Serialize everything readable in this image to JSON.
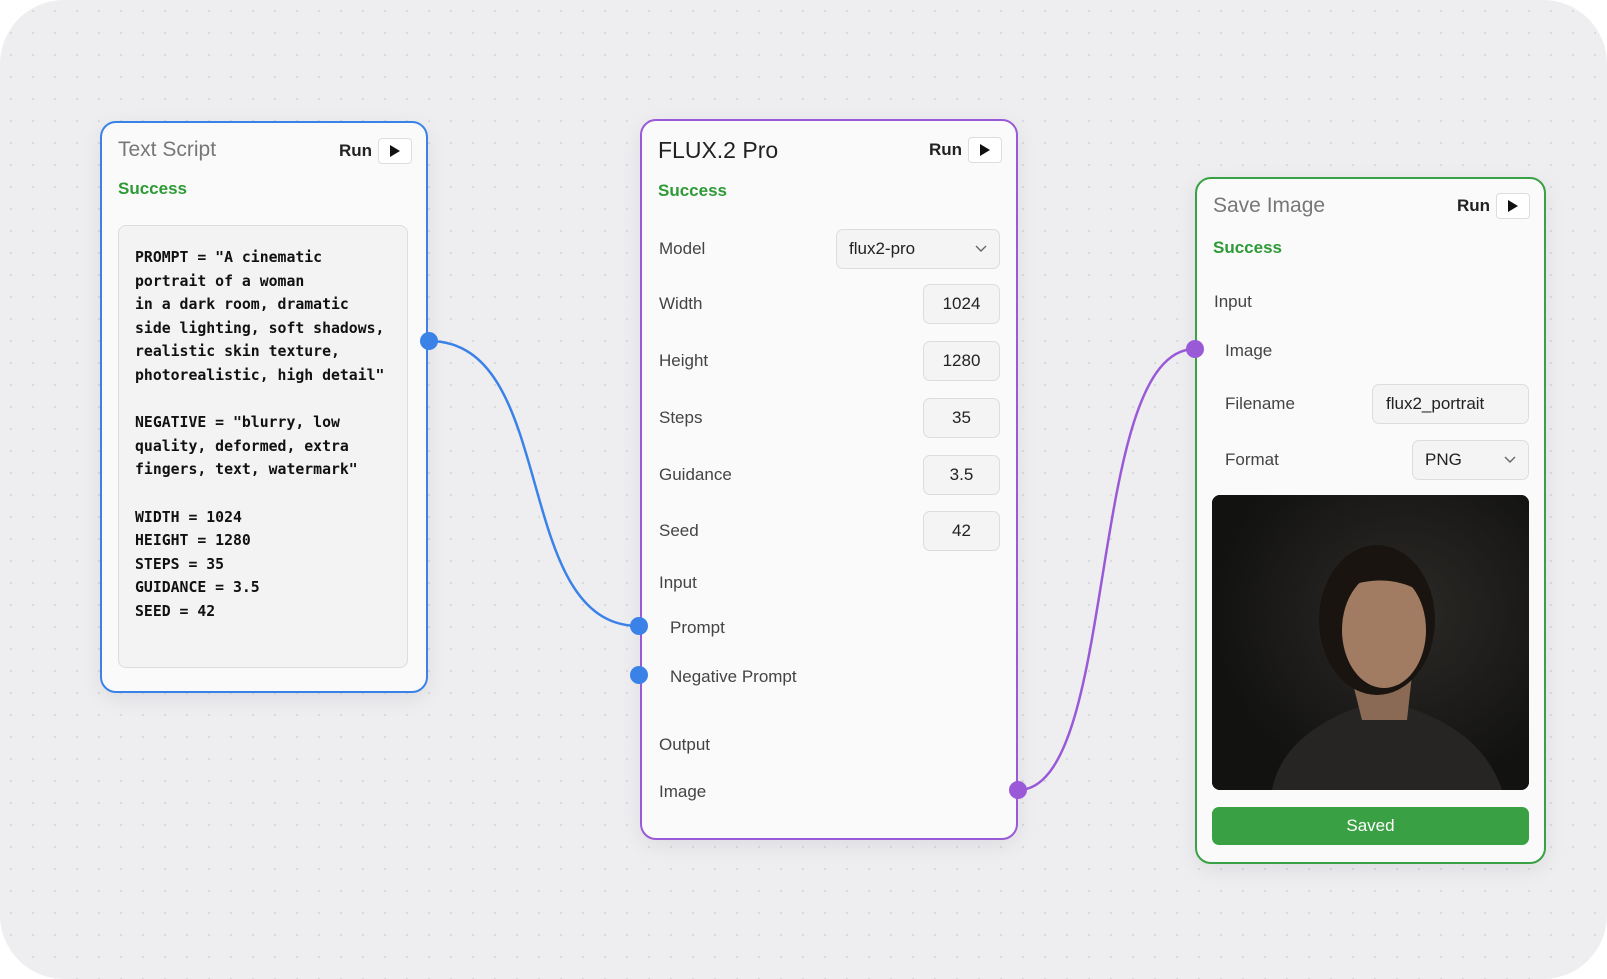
{
  "nodes": [
    {
      "title": "Text Script",
      "run": "Run",
      "status": "Success",
      "script": "PROMPT = \"A cinematic\nportrait of a woman\nin a dark room, dramatic\nside lighting, soft shadows,\nrealistic skin texture,\nphotorealistic, high detail\"\n\nNEGATIVE = \"blurry, low\nquality, deformed, extra\nfingers, text, watermark\"\n\nWIDTH = 1024\nHEIGHT = 1280\nSTEPS = 35\nGUIDANCE = 3.5\nSEED = 42"
    },
    {
      "title": "FLUX.2 Pro",
      "run": "Run",
      "status": "Success",
      "fields": [
        {
          "label": "Model",
          "value": "flux2-pro"
        },
        {
          "label": "Width",
          "value": 1024
        },
        {
          "label": "Height",
          "value": 1280
        },
        {
          "label": "Steps",
          "value": 35
        },
        {
          "label": "Guidance",
          "value": 3.5
        },
        {
          "label": "Seed",
          "value": 42
        }
      ],
      "input_section": "Input",
      "inputs": [
        "Prompt",
        "Negative Prompt"
      ],
      "output_section": "Output",
      "outputs": [
        "Image"
      ]
    },
    {
      "title": "Save Image",
      "run": "Run",
      "status": "Success",
      "input_section": "Input",
      "inputs": [
        "Image"
      ],
      "fields": [
        {
          "label": "Filename",
          "value": "flux2_portrait"
        },
        {
          "label": "Format",
          "value": "PNG"
        }
      ],
      "button": "Saved"
    }
  ]
}
